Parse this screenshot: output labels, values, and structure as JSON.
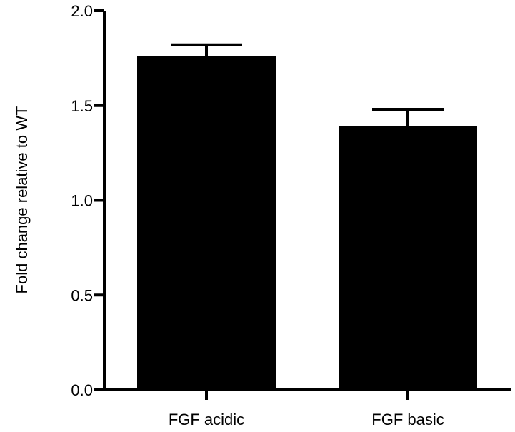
{
  "chart_data": {
    "type": "bar",
    "title": "",
    "xlabel": "",
    "ylabel": "Fold change relative to WT",
    "categories": [
      "FGF acidic",
      "FGF basic"
    ],
    "values": [
      1.76,
      1.39
    ],
    "error": [
      0.06,
      0.09
    ],
    "ylim": [
      0.0,
      2.0
    ],
    "yticks": [
      0.0,
      0.5,
      1.0,
      1.5,
      2.0
    ],
    "ytick_labels": [
      "0.0",
      "0.5",
      "1.0",
      "1.5",
      "2.0"
    ],
    "grid": false,
    "bar_color": "#000000"
  }
}
